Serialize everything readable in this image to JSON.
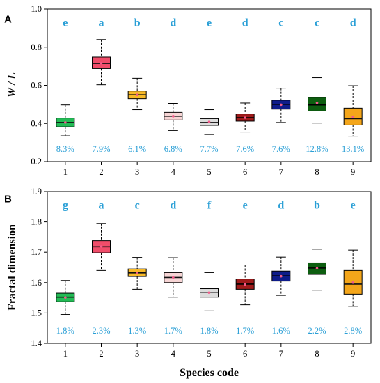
{
  "figure": {
    "xlabel": "Species code"
  },
  "chart_data": [
    {
      "type": "box",
      "panel_label": "A",
      "ylabel": "W / L",
      "categories": [
        "1",
        "2",
        "3",
        "4",
        "5",
        "6",
        "7",
        "8",
        "9"
      ],
      "ylim": [
        0.2,
        1.0
      ],
      "yticks": [
        0.2,
        0.4,
        0.6,
        0.8,
        1.0
      ],
      "ytick_labels": [
        "0.2",
        "0.4",
        "0.6",
        "0.8",
        "1.0"
      ],
      "boxes": [
        {
          "min": 0.335,
          "q1": 0.382,
          "median": 0.405,
          "q3": 0.428,
          "max": 0.497,
          "mean": 0.405,
          "color": "#22bb55",
          "significance": "e",
          "cv": "8.3%"
        },
        {
          "min": 0.603,
          "q1": 0.688,
          "median": 0.715,
          "q3": 0.748,
          "max": 0.84,
          "mean": 0.716,
          "color": "#f04d6a",
          "significance": "a",
          "cv": "7.9%"
        },
        {
          "min": 0.472,
          "q1": 0.53,
          "median": 0.55,
          "q3": 0.57,
          "max": 0.637,
          "mean": 0.55,
          "color": "#f7b928",
          "significance": "b",
          "cv": "6.1%"
        },
        {
          "min": 0.363,
          "q1": 0.418,
          "median": 0.438,
          "q3": 0.458,
          "max": 0.505,
          "mean": 0.438,
          "color": "#f7d5d5",
          "significance": "d",
          "cv": "6.8%"
        },
        {
          "min": 0.342,
          "q1": 0.39,
          "median": 0.405,
          "q3": 0.425,
          "max": 0.472,
          "mean": 0.408,
          "color": "#dcdcdc",
          "significance": "e",
          "cv": "7.7%"
        },
        {
          "min": 0.355,
          "q1": 0.412,
          "median": 0.43,
          "q3": 0.45,
          "max": 0.507,
          "mean": 0.43,
          "color": "#a01b1b",
          "significance": "d",
          "cv": "7.6%"
        },
        {
          "min": 0.405,
          "q1": 0.475,
          "median": 0.5,
          "q3": 0.522,
          "max": 0.585,
          "mean": 0.498,
          "color": "#0e1c8a",
          "significance": "c",
          "cv": "7.6%"
        },
        {
          "min": 0.402,
          "q1": 0.465,
          "median": 0.497,
          "q3": 0.537,
          "max": 0.64,
          "mean": 0.508,
          "color": "#0d5e10",
          "significance": "c",
          "cv": "12.8%"
        },
        {
          "min": 0.333,
          "q1": 0.392,
          "median": 0.425,
          "q3": 0.48,
          "max": 0.598,
          "mean": 0.435,
          "color": "#f4a61a",
          "significance": "d",
          "cv": "13.1%"
        }
      ]
    },
    {
      "type": "box",
      "panel_label": "B",
      "ylabel": "Fractal dimension",
      "xlabel": "Species code",
      "categories": [
        "1",
        "2",
        "3",
        "4",
        "5",
        "6",
        "7",
        "8",
        "9"
      ],
      "ylim": [
        1.4,
        1.9
      ],
      "yticks": [
        1.4,
        1.5,
        1.6,
        1.7,
        1.8,
        1.9
      ],
      "ytick_labels": [
        "1.4",
        "1.5",
        "1.6",
        "1.7",
        "1.8",
        "1.9"
      ],
      "boxes": [
        {
          "min": 1.495,
          "q1": 1.537,
          "median": 1.552,
          "q3": 1.565,
          "max": 1.607,
          "mean": 1.551,
          "color": "#22bb55",
          "significance": "g",
          "cv": "1.8%"
        },
        {
          "min": 1.64,
          "q1": 1.698,
          "median": 1.718,
          "q3": 1.738,
          "max": 1.795,
          "mean": 1.719,
          "color": "#f04d6a",
          "significance": "a",
          "cv": "2.3%"
        },
        {
          "min": 1.578,
          "q1": 1.62,
          "median": 1.632,
          "q3": 1.645,
          "max": 1.683,
          "mean": 1.632,
          "color": "#f7b928",
          "significance": "c",
          "cv": "1.3%"
        },
        {
          "min": 1.552,
          "q1": 1.6,
          "median": 1.617,
          "q3": 1.633,
          "max": 1.682,
          "mean": 1.617,
          "color": "#f7d5d5",
          "significance": "d",
          "cv": "1.7%"
        },
        {
          "min": 1.507,
          "q1": 1.552,
          "median": 1.568,
          "q3": 1.58,
          "max": 1.633,
          "mean": 1.567,
          "color": "#dcdcdc",
          "significance": "f",
          "cv": "1.8%"
        },
        {
          "min": 1.527,
          "q1": 1.578,
          "median": 1.595,
          "q3": 1.612,
          "max": 1.658,
          "mean": 1.594,
          "color": "#a01b1b",
          "significance": "e",
          "cv": "1.7%"
        },
        {
          "min": 1.558,
          "q1": 1.605,
          "median": 1.622,
          "q3": 1.638,
          "max": 1.684,
          "mean": 1.621,
          "color": "#0e1c8a",
          "significance": "d",
          "cv": "1.6%"
        },
        {
          "min": 1.575,
          "q1": 1.627,
          "median": 1.648,
          "q3": 1.665,
          "max": 1.71,
          "mean": 1.647,
          "color": "#0d5e10",
          "significance": "b",
          "cv": "2.2%"
        },
        {
          "min": 1.522,
          "q1": 1.562,
          "median": 1.595,
          "q3": 1.64,
          "max": 1.707,
          "mean": 1.6,
          "color": "#f4a61a",
          "significance": "e",
          "cv": "2.8%"
        }
      ]
    }
  ]
}
